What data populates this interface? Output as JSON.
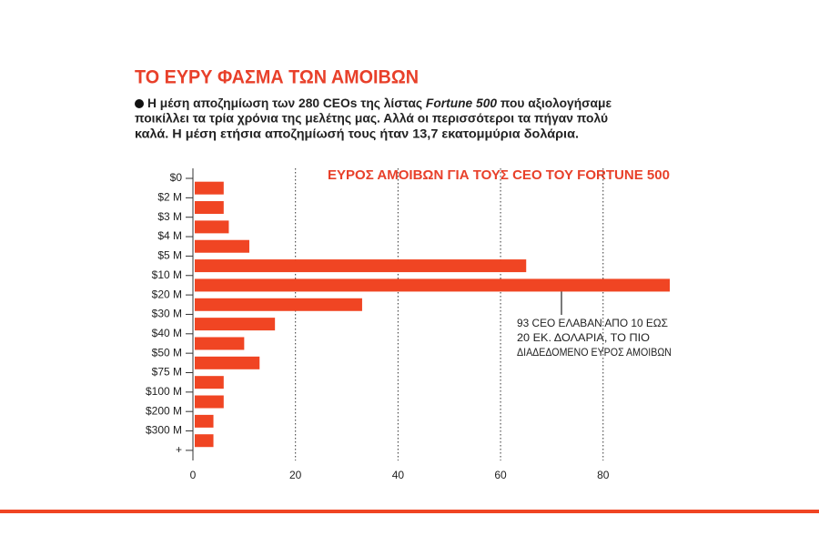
{
  "title": "ΤΟ ΕΥΡΥ ΦΑΣΜΑ ΤΩΝ ΑΜΟΙΒΩΝ",
  "subtitle": [
    "Η μέση αποζημίωση των 280 CEOs της λίστας ",
    "Fortune 500",
    " που αξιολογήσαμε",
    "ποικίλλει τα τρία χρόνια της μελέτης μας. Αλλά οι περισσότεροι τα πήγαν πολύ",
    "καλά. Η μέση ετήσια αποζημίωσή τους ήταν 13,7 εκατομμύρια δολάρια."
  ],
  "chart_data": {
    "type": "histogram",
    "title": "ΕΥΡΟΣ ΑΜΟΙΒΩΝ ΓΙΑ ΤΟΥΣ CEO ΤΟΥ FORTUNE 500",
    "bins": [
      "$0",
      "$2 M",
      "$3 M",
      "$4 M",
      "$5 M",
      "$10 M",
      "$20 M",
      "$30 M",
      "$40 M",
      "$50 M",
      "$75 M",
      "$100 M",
      "$200 M",
      "$300 M",
      "+"
    ],
    "values": [
      6,
      6,
      7,
      11,
      65,
      93,
      33,
      16,
      10,
      13,
      6,
      6,
      4,
      4
    ],
    "color": "#f04523",
    "orientation": "horizontal",
    "xlim": [
      0,
      93
    ],
    "xticks": [
      0,
      20,
      40,
      60,
      80
    ],
    "grid": true,
    "annotation": [
      "93 CEO ΕΛΑΒΑΝ ΑΠΟ 10 ΕΩΣ",
      "20 ΕΚ. ΔΟΛΑΡΙΑ, ΤΟ ΠΙΟ",
      "ΔΙΑΔΕΔΟΜΕΝΟ ΕΥΡΟΣ ΑΜΟΙΒΩΝ"
    ]
  }
}
